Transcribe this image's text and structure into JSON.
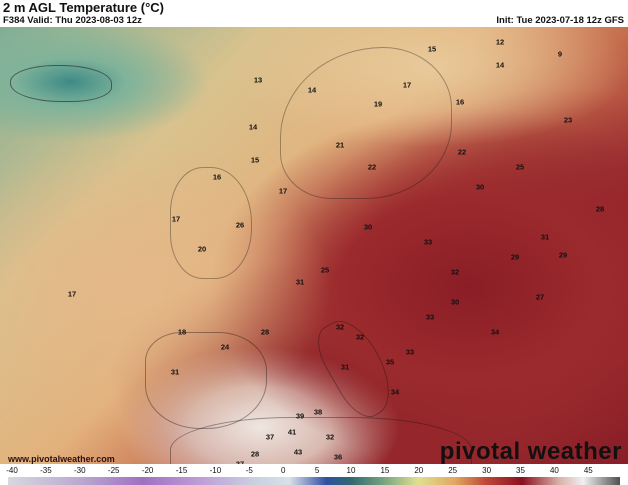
{
  "header": {
    "title": "2 m AGL Temperature (°C)",
    "valid": "F384 Valid: Thu 2023-08-03 12z",
    "init": "Init: Tue 2023-07-18 12z GFS"
  },
  "map": {
    "temperature_labels": [
      "15",
      "12",
      "9",
      "13",
      "14",
      "19",
      "17",
      "16",
      "14",
      "21",
      "23",
      "14",
      "15",
      "22",
      "17",
      "16",
      "17",
      "22",
      "25",
      "30",
      "31",
      "33",
      "28",
      "30",
      "32",
      "29",
      "17",
      "18",
      "20",
      "26",
      "31",
      "28",
      "32",
      "33",
      "30",
      "34",
      "33",
      "24",
      "31",
      "32",
      "35",
      "34",
      "32",
      "43",
      "37",
      "41",
      "37",
      "39",
      "38",
      "28",
      "36",
      "29",
      "27",
      "31",
      "25"
    ],
    "watermark_url": "www.pivotalweather.com",
    "brand": "pivotal weather"
  },
  "colorbar": {
    "unit": "°C",
    "ticks": [
      "-40",
      "-35",
      "-30",
      "-25",
      "-20",
      "-15",
      "-10",
      "-5",
      "0",
      "5",
      "10",
      "15",
      "20",
      "25",
      "30",
      "35",
      "40",
      "45"
    ]
  }
}
